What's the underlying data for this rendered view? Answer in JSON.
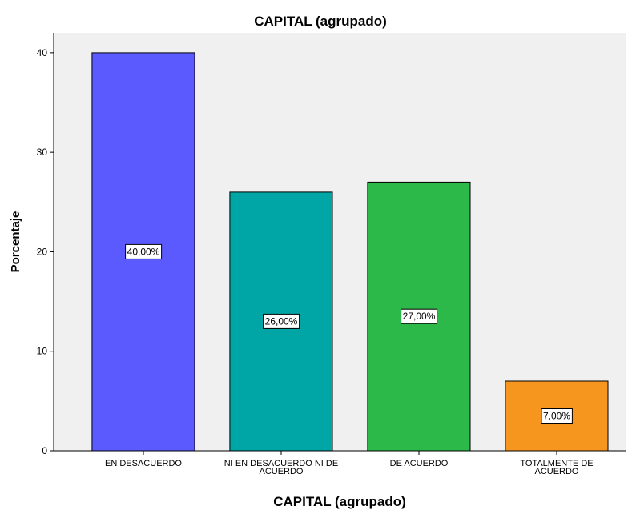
{
  "chart_data": {
    "type": "bar",
    "title": "CAPITAL (agrupado)",
    "xlabel": "CAPITAL (agrupado)",
    "ylabel": "Porcentaje",
    "categories": [
      [
        "EN DESACUERDO"
      ],
      [
        "NI EN DESACUERDO NI DE",
        "ACUERDO"
      ],
      [
        "DE ACUERDO"
      ],
      [
        "TOTALMENTE DE",
        "ACUERDO"
      ]
    ],
    "values": [
      40,
      26,
      27,
      7
    ],
    "data_labels": [
      "40,00%",
      "26,00%",
      "27,00%",
      "7,00%"
    ],
    "colors": [
      "#5a5aff",
      "#00a5a5",
      "#2db84a",
      "#f7961e"
    ],
    "yticks": [
      0,
      10,
      20,
      30,
      40
    ],
    "ylim": [
      0,
      42
    ],
    "grid": false,
    "plot_background": "#f0f0f0"
  }
}
